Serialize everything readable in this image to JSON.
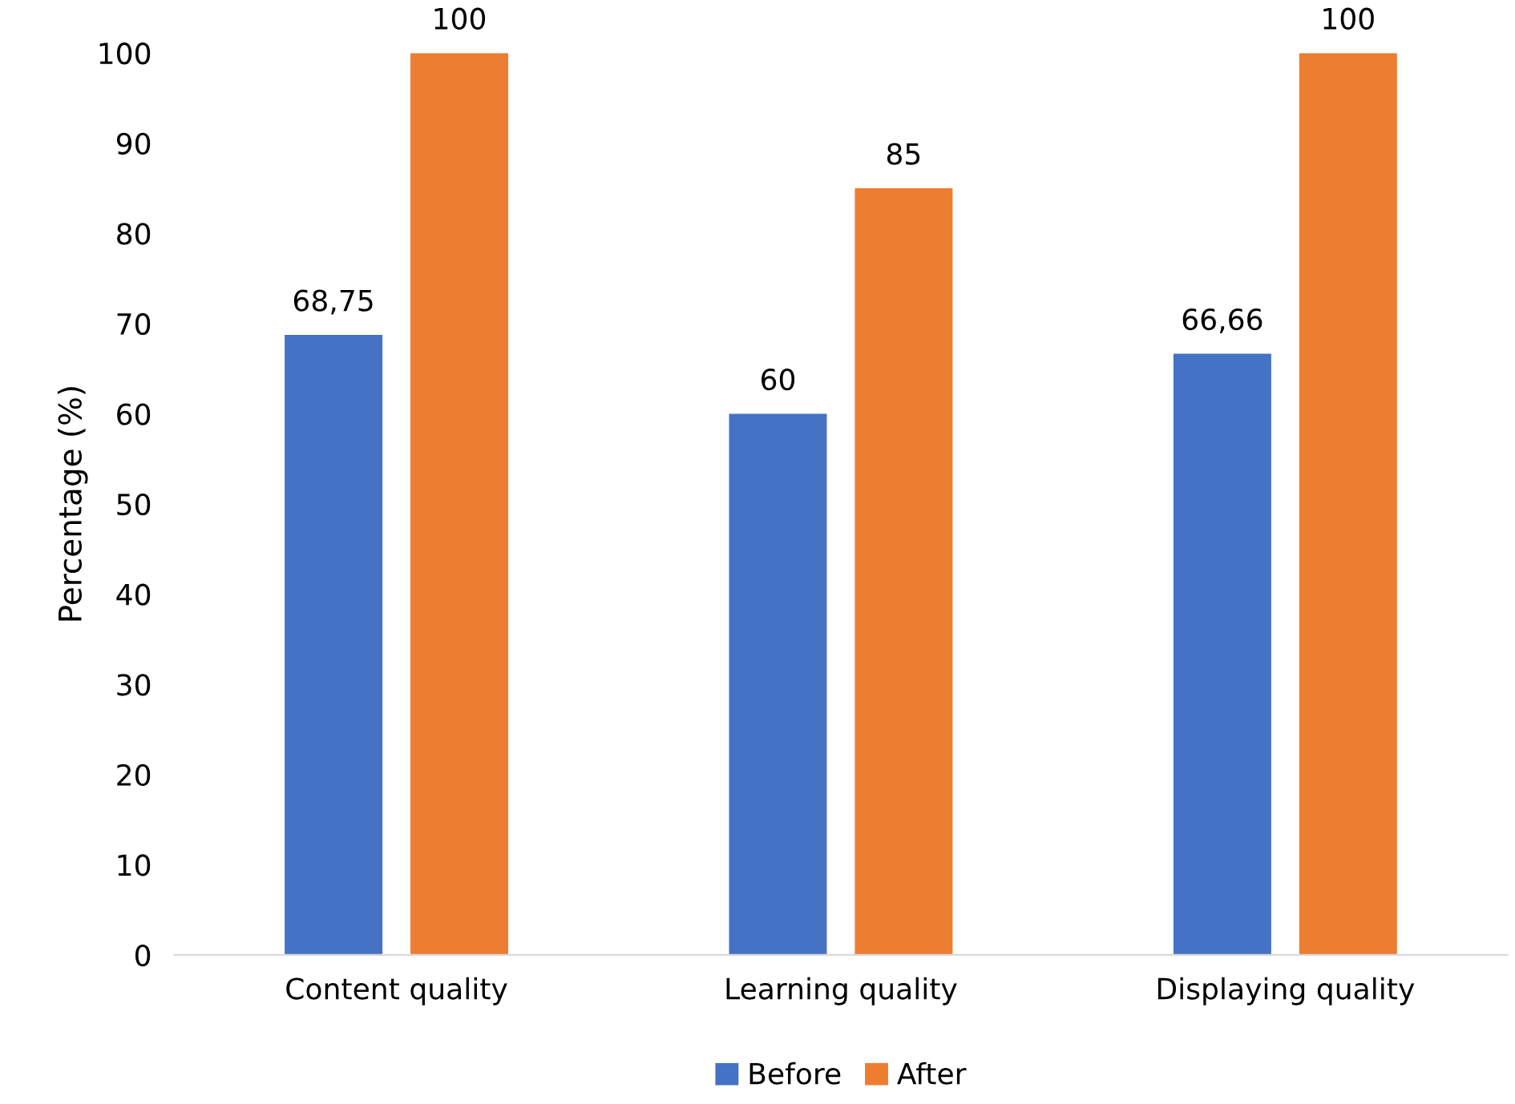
{
  "chart_data": {
    "type": "bar",
    "ylabel": "Percentage (%)",
    "categories": [
      "Content quality",
      "Learning quality",
      "Displaying quality"
    ],
    "series": [
      {
        "name": "Before",
        "color": "#4472c4",
        "values": [
          68.75,
          60,
          66.66
        ],
        "value_labels": [
          "68,75",
          "60",
          "66,66"
        ]
      },
      {
        "name": "After",
        "color": "#ed7d31",
        "values": [
          100,
          85,
          100
        ],
        "value_labels": [
          "100",
          "85",
          "100"
        ]
      }
    ],
    "ylim": [
      0,
      100
    ],
    "yticks": [
      0,
      10,
      20,
      30,
      40,
      50,
      60,
      70,
      80,
      90,
      100
    ],
    "grid": false,
    "legend": "bottom"
  }
}
